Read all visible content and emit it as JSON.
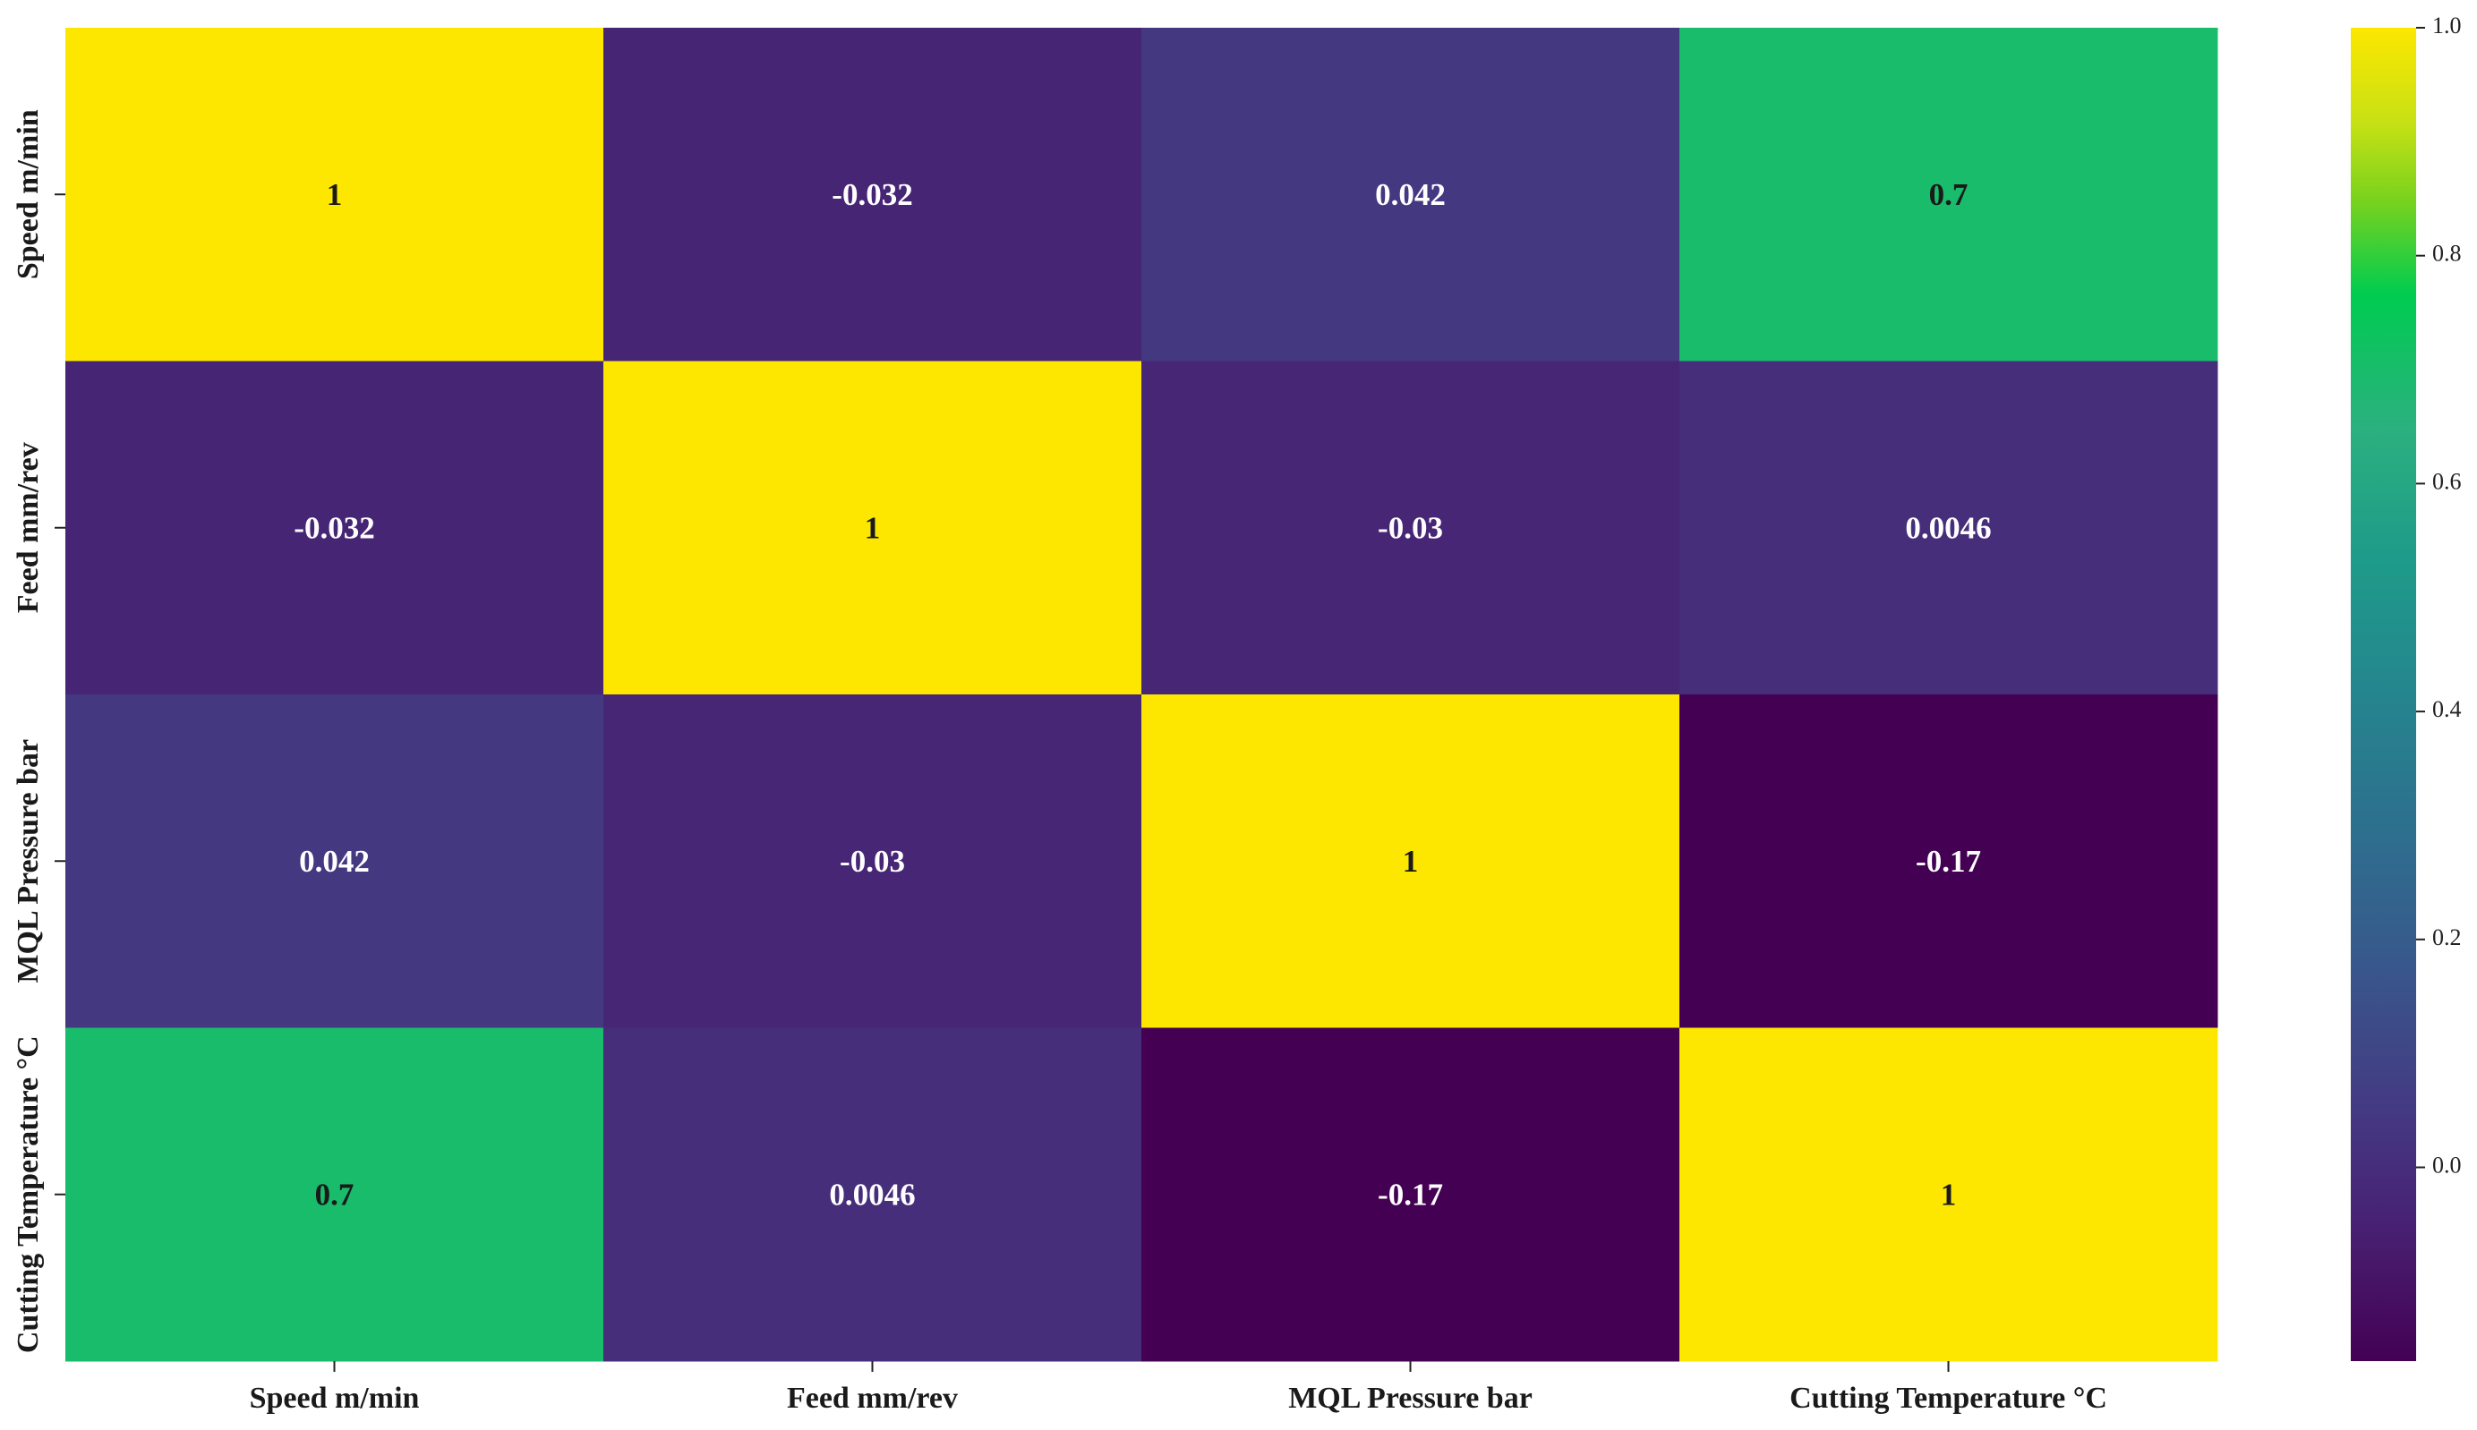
{
  "chart_data": {
    "type": "heatmap",
    "title": "",
    "xlabel": "",
    "ylabel": "",
    "x_categories": [
      "Speed m/min",
      "Feed mm/rev",
      "MQL Pressure bar",
      "Cutting Temperature °C"
    ],
    "y_categories": [
      "Speed m/min",
      "Feed mm/rev",
      "MQL Pressure bar",
      "Cutting Temperature °C"
    ],
    "values": [
      [
        1,
        -0.032,
        0.042,
        0.7
      ],
      [
        -0.032,
        1,
        -0.03,
        0.0046
      ],
      [
        0.042,
        -0.03,
        1,
        -0.17
      ],
      [
        0.7,
        0.0046,
        -0.17,
        1
      ]
    ],
    "cell_labels": [
      [
        "1",
        "-0.032",
        "0.042",
        "0.7"
      ],
      [
        "-0.032",
        "1",
        "-0.03",
        "0.0046"
      ],
      [
        "0.042",
        "-0.03",
        "1",
        "-0.17"
      ],
      [
        "0.7",
        "0.0046",
        "-0.17",
        "1"
      ]
    ],
    "colormap": "viridis",
    "colorbar": {
      "range": [
        -0.17,
        1.0
      ],
      "ticks": [
        0.0,
        0.2,
        0.4,
        0.6,
        0.8,
        1.0
      ],
      "tick_labels": [
        "0.0",
        "0.2",
        "0.4",
        "0.6",
        "0.8",
        "1.0"
      ],
      "placement": "right"
    },
    "colors": {
      "low": "#440154",
      "mid": "#21908d",
      "high": "#fde725",
      "dark_label": "#1a1a1a",
      "light_label": "#ffffff"
    }
  }
}
